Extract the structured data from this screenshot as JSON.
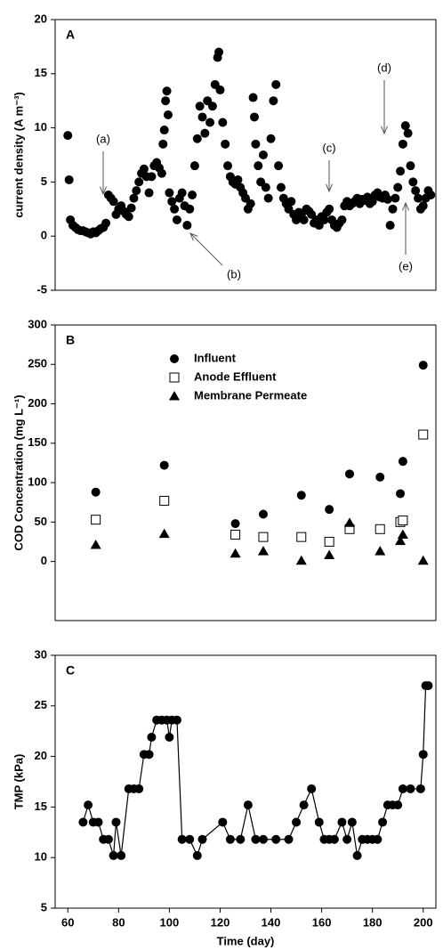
{
  "chart_data": [
    {
      "type": "scatter",
      "panel": "A",
      "ylabel": "current density (A m⁻³)",
      "xlim": [
        55,
        205
      ],
      "ylim": [
        -5,
        20
      ],
      "yticks": [
        -5,
        0,
        5,
        10,
        15,
        20
      ],
      "color": "#000000",
      "marker": "circle",
      "annotations": [
        "(a)",
        "(b)",
        "(c)",
        "(d)",
        "(e)"
      ],
      "x": [
        60,
        60.5,
        61,
        62,
        63,
        64,
        65,
        66,
        67,
        68,
        69,
        70,
        71,
        72,
        73,
        74,
        75,
        76,
        77,
        78,
        79,
        80,
        81,
        82,
        83,
        84,
        85,
        86,
        87,
        88,
        89,
        90,
        91,
        92,
        93,
        94,
        95,
        96,
        97,
        97.5,
        98,
        98.5,
        99,
        99.5,
        100,
        101,
        102,
        103,
        104,
        105,
        106,
        107,
        108,
        109,
        110,
        111,
        112,
        113,
        114,
        115,
        116,
        117,
        118,
        119,
        119.5,
        120,
        121,
        122,
        123,
        124,
        125,
        126,
        127,
        128,
        129,
        130,
        131,
        132,
        133,
        133.5,
        134,
        135,
        136,
        137,
        138,
        139,
        140,
        141,
        142,
        143,
        144,
        145,
        146,
        147,
        148,
        149,
        150,
        151,
        152,
        153,
        154,
        155,
        156,
        157,
        158,
        159,
        160,
        161,
        162,
        163,
        164,
        165,
        166,
        167,
        168,
        169,
        170,
        171,
        172,
        173,
        174,
        175,
        176,
        177,
        178,
        179,
        180,
        181,
        182,
        183,
        184,
        185,
        186,
        187,
        188,
        189,
        190,
        191,
        192,
        193,
        194,
        195,
        196,
        197,
        198,
        199,
        200,
        201,
        202,
        203
      ],
      "values": [
        9.3,
        5.2,
        1.5,
        1.0,
        0.8,
        0.6,
        0.5,
        0.5,
        0.4,
        0.3,
        0.2,
        0.4,
        0.3,
        0.5,
        0.7,
        0.8,
        1.2,
        3.8,
        3.5,
        3.2,
        2.0,
        2.5,
        2.8,
        2.3,
        2.0,
        1.8,
        2.6,
        3.5,
        4.2,
        5.0,
        5.8,
        6.2,
        5.5,
        4.0,
        5.5,
        6.5,
        6.8,
        6.3,
        5.8,
        8.5,
        9.8,
        12.5,
        13.4,
        11.2,
        4.0,
        3.2,
        2.5,
        1.5,
        3.5,
        4.0,
        2.8,
        1.0,
        2.5,
        3.8,
        6.5,
        9.0,
        12.0,
        11.0,
        9.5,
        12.5,
        10.5,
        12.0,
        14.0,
        16.5,
        17.0,
        13.5,
        10.5,
        8.5,
        6.5,
        5.5,
        5.0,
        4.8,
        5.2,
        4.5,
        4.0,
        3.5,
        2.5,
        3.0,
        12.8,
        11.0,
        8.5,
        6.5,
        5.0,
        7.5,
        4.5,
        3.5,
        9.0,
        12.5,
        14.0,
        6.5,
        4.5,
        3.5,
        3.0,
        2.5,
        3.2,
        2.0,
        1.5,
        2.2,
        2.0,
        1.5,
        2.5,
        2.3,
        2.0,
        1.2,
        1.5,
        1.0,
        1.8,
        1.5,
        2.2,
        2.5,
        1.5,
        1.0,
        0.8,
        1.2,
        1.5,
        2.8,
        3.2,
        2.8,
        3.0,
        3.2,
        3.5,
        3.0,
        3.4,
        3.3,
        3.6,
        3.0,
        3.2,
        3.8,
        4.0,
        3.6,
        3.5,
        3.8,
        3.4,
        1.0,
        2.5,
        3.5,
        4.5,
        6.0,
        8.5,
        10.2,
        9.5,
        6.5,
        5.0,
        4.2,
        3.5,
        2.5,
        2.8,
        3.5,
        4.2,
        3.8
      ]
    },
    {
      "type": "scatter",
      "panel": "B",
      "ylabel": "COD Concentration (mg L⁻¹)",
      "xlim": [
        55,
        205
      ],
      "ylim": [
        -75,
        300
      ],
      "yticks": [
        0,
        50,
        100,
        150,
        200,
        250,
        300
      ],
      "x": [
        71,
        98,
        126,
        137,
        152,
        163,
        171,
        183,
        191,
        192,
        200
      ],
      "series": [
        {
          "name": "Influent",
          "color": "#000000",
          "marker": "circle",
          "values": [
            88,
            122,
            48,
            60,
            84,
            66,
            111,
            107,
            86,
            127,
            249
          ]
        },
        {
          "name": "Anode Effluent",
          "color": "#000000",
          "marker": "square-open",
          "values": [
            53,
            77,
            34,
            31,
            31,
            25,
            41,
            41,
            50,
            52,
            161
          ]
        },
        {
          "name": "Membrane Permeate",
          "color": "#000000",
          "marker": "triangle",
          "values": [
            21,
            35,
            10,
            13,
            1,
            8,
            49,
            13,
            26,
            34,
            1
          ]
        }
      ]
    },
    {
      "type": "line",
      "panel": "C",
      "ylabel": "TMP (kPa)",
      "xlabel": "Time (day)",
      "xlim": [
        55,
        205
      ],
      "xticks": [
        60,
        80,
        100,
        120,
        140,
        160,
        180,
        200
      ],
      "ylim": [
        5,
        30
      ],
      "yticks": [
        5,
        10,
        15,
        20,
        25,
        30
      ],
      "color": "#000000",
      "marker": "circle",
      "x": [
        66,
        68,
        70,
        72,
        74,
        76,
        78,
        79,
        81,
        84,
        86,
        88,
        90,
        92,
        93,
        95,
        97,
        99,
        100,
        101,
        103,
        105,
        108,
        111,
        113,
        121,
        124,
        128,
        131,
        134,
        137,
        142,
        147,
        150,
        153,
        156,
        159,
        161,
        163,
        165,
        168,
        170,
        172,
        174,
        176,
        178,
        180,
        182,
        184,
        186,
        188,
        190,
        192,
        195,
        199,
        200,
        201,
        202
      ],
      "values": [
        13.5,
        15.2,
        13.5,
        13.5,
        11.8,
        11.8,
        10.2,
        13.5,
        10.2,
        16.8,
        16.8,
        16.8,
        20.2,
        20.2,
        21.9,
        23.6,
        23.6,
        23.6,
        21.9,
        23.6,
        23.6,
        11.8,
        11.8,
        10.2,
        11.8,
        13.5,
        11.8,
        11.8,
        15.2,
        11.8,
        11.8,
        11.8,
        11.8,
        13.5,
        15.2,
        16.8,
        13.5,
        11.8,
        11.8,
        11.8,
        13.5,
        11.8,
        13.5,
        10.2,
        11.8,
        11.8,
        11.8,
        11.8,
        13.5,
        15.2,
        15.2,
        15.2,
        16.8,
        16.8,
        16.8,
        20.2,
        27,
        27
      ]
    }
  ]
}
